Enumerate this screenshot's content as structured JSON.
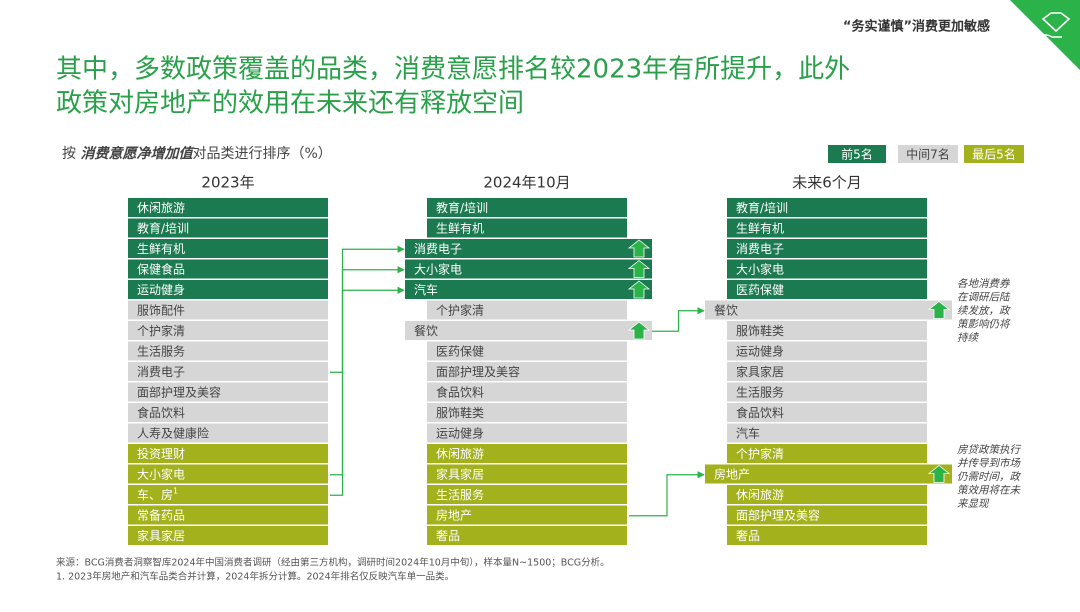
{
  "header": {
    "tag": "“务实谨慎”消费更加敏感"
  },
  "title": [
    "其中，多数政策覆盖的品类，消费意愿排名较2023年有所提升，此外",
    "政策对房地产的效用在未来还有释放空间"
  ],
  "subtitle": {
    "prefix": "按 ",
    "emphasis": "消费意愿净增加值",
    "suffix": "对品类进行排序（%）"
  },
  "legend": [
    "前5名",
    "中间7名",
    "最后5名"
  ],
  "columns": [
    {
      "header": "2023年",
      "superscript": "1",
      "rows": [
        "休闲旅游",
        "教育/培训",
        "生鲜有机",
        "保健食品",
        "运动健身",
        "服饰配件",
        "个护家清",
        "生活服务",
        "消费电子",
        "面部护理及美容",
        "食品饮料",
        "人寿及健康险",
        "投资理财",
        "大小家电",
        "车、房",
        "常备药品",
        "家具家居"
      ]
    },
    {
      "header": "2024年10月",
      "rows": [
        "教育/培训",
        "生鲜有机",
        "消费电子",
        "大小家电",
        "汽车",
        "个护家清",
        "餐饮",
        "医药保健",
        "面部护理及美容",
        "食品饮料",
        "服饰鞋类",
        "运动健身",
        "休闲旅游",
        "家具家居",
        "生活服务",
        "房地产",
        "奢品"
      ]
    },
    {
      "header": "未来6个月",
      "rows": [
        "教育/培训",
        "生鲜有机",
        "消费电子",
        "大小家电",
        "医药保健",
        "餐饮",
        "服饰鞋类",
        "运动健身",
        "家具家居",
        "生活服务",
        "食品饮料",
        "汽车",
        "个护家清",
        "房地产",
        "休闲旅游",
        "面部护理及美容",
        "奢品"
      ]
    }
  ],
  "annotations": [
    [
      "各地消费券",
      "在调研后陆",
      "续发放，政",
      "策影响仍将",
      "持续"
    ],
    [
      "房贷政策执行",
      "并传导到市场",
      "仍需时间，政",
      "策效用将在未",
      "来显现"
    ]
  ],
  "footnotes": [
    "来源：BCG消费者洞察智库2024年中国消费者调研（经由第三方机构，调研时间2024年10月中旬），样本量N~1500；BCG分析。",
    "1. 2023年房地产和汽车品类合并计算，2024年拆分计算。2024年排名仅反映汽车单一品类。"
  ]
}
